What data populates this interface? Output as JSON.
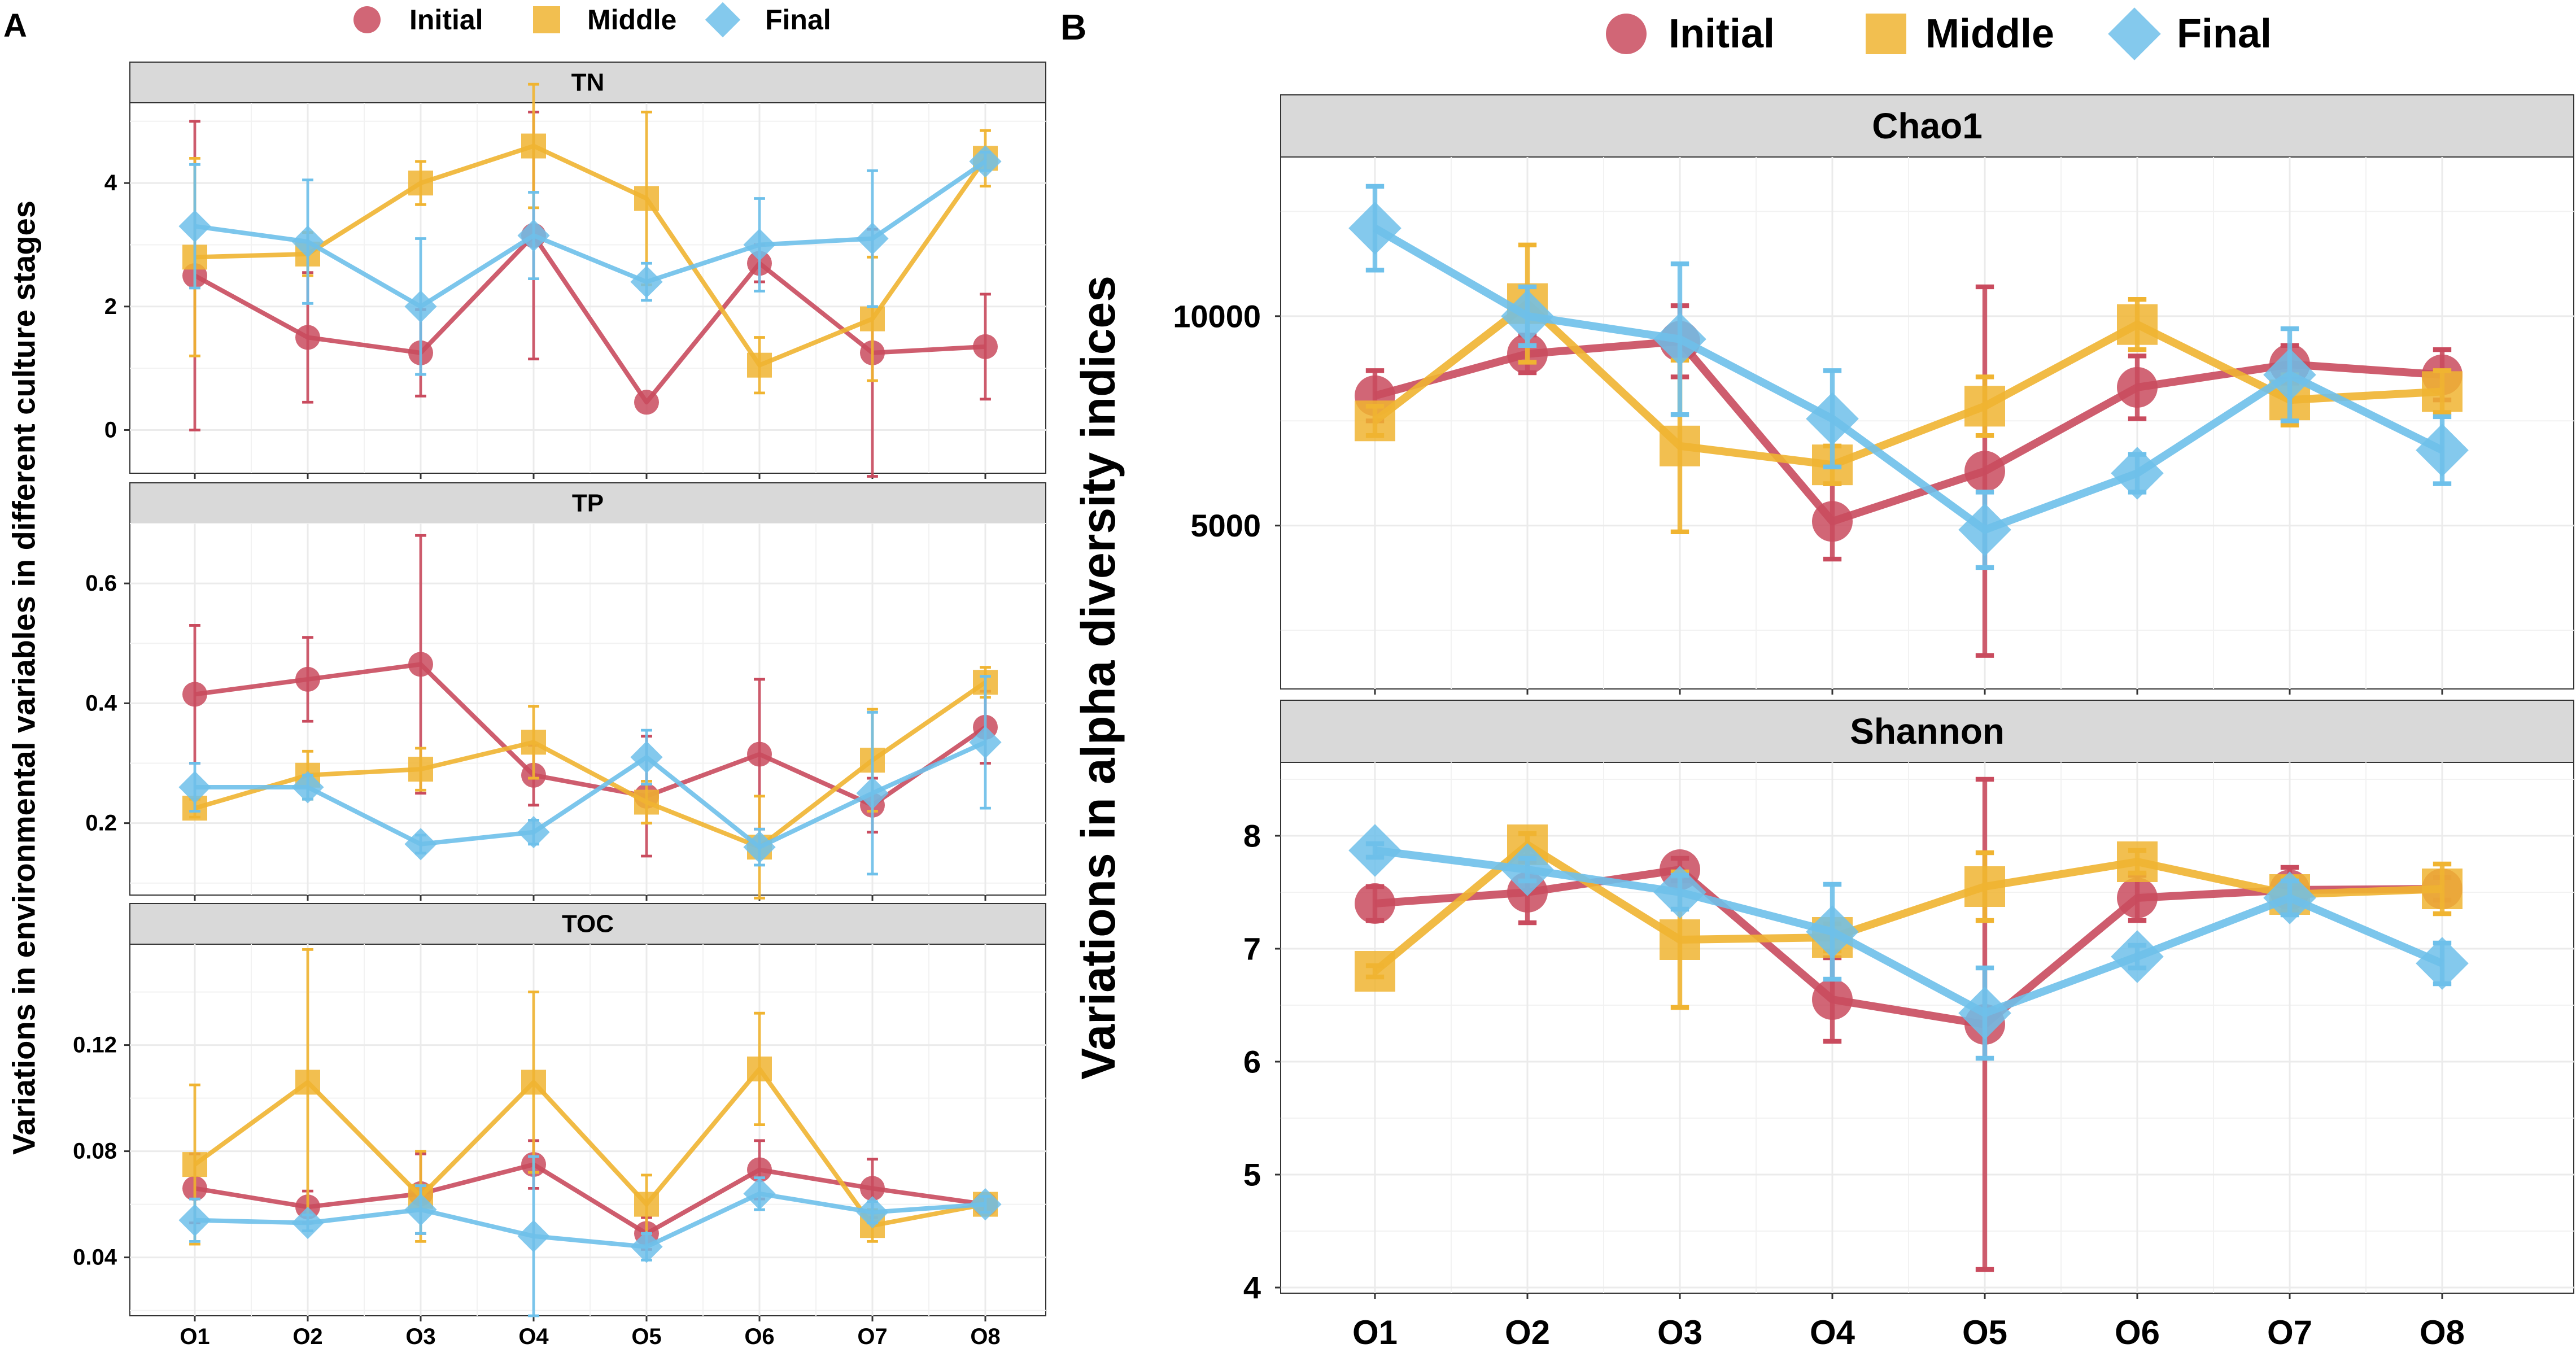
{
  "chart_data": [
    {
      "panel_label": "A",
      "type": "line",
      "ylabel": "Variations in environmental variables in different culture stages",
      "legend": [
        "Initial",
        "Middle",
        "Final"
      ],
      "categories": [
        "O1",
        "O2",
        "O3",
        "O4",
        "O5",
        "O6",
        "O7",
        "O8"
      ],
      "facets": [
        {
          "title": "TN",
          "ylim": [
            -0.7,
            5.3
          ],
          "yticks": [
            0,
            2,
            4
          ],
          "ytick_labels": [
            "0",
            "2",
            "4"
          ],
          "series": [
            {
              "name": "Initial",
              "values": [
                2.5,
                1.5,
                1.25,
                3.15,
                0.45,
                2.7,
                1.25,
                1.35
              ],
              "err": [
                2.5,
                1.05,
                0.7,
                2.0,
                0,
                0.3,
                2.0,
                0.85
              ]
            },
            {
              "name": "Middle",
              "values": [
                2.8,
                2.85,
                4.0,
                4.6,
                3.75,
                1.05,
                1.8,
                4.4
              ],
              "err": [
                1.6,
                0.35,
                0.35,
                1.0,
                1.4,
                0.45,
                1.0,
                0.45
              ]
            },
            {
              "name": "Final",
              "values": [
                3.3,
                3.05,
                2.0,
                3.15,
                2.4,
                3.0,
                3.1,
                4.35
              ],
              "err": [
                1.0,
                1.0,
                1.1,
                0.7,
                0.3,
                0.75,
                1.1,
                0.15
              ]
            }
          ]
        },
        {
          "title": "TP",
          "ylim": [
            0.08,
            0.7
          ],
          "yticks": [
            0.2,
            0.4,
            0.6
          ],
          "ytick_labels": [
            "0.2",
            "0.4",
            "0.6"
          ],
          "series": [
            {
              "name": "Initial",
              "values": [
                0.415,
                0.44,
                0.465,
                0.28,
                0.245,
                0.315,
                0.23,
                0.36
              ],
              "err": [
                0.115,
                0.07,
                0.215,
                0.05,
                0.1,
                0.125,
                0.045,
                0.06
              ]
            },
            {
              "name": "Middle",
              "values": [
                0.225,
                0.28,
                0.29,
                0.335,
                0.235,
                0.16,
                0.305,
                0.435
              ],
              "err": [
                0.015,
                0.04,
                0.035,
                0.06,
                0.035,
                0.085,
                0.085,
                0.025
              ]
            },
            {
              "name": "Final",
              "values": [
                0.26,
                0.26,
                0.165,
                0.185,
                0.31,
                0.16,
                0.25,
                0.335
              ],
              "err": [
                0.04,
                0.02,
                0.015,
                0.02,
                0.045,
                0.03,
                0.135,
                0.11
              ]
            }
          ]
        },
        {
          "title": "TOC",
          "ylim": [
            0.018,
            0.158
          ],
          "yticks": [
            0.04,
            0.08,
            0.12
          ],
          "ytick_labels": [
            "0.04",
            "0.08",
            "0.12"
          ],
          "series": [
            {
              "name": "Initial",
              "values": [
                0.066,
                0.059,
                0.064,
                0.075,
                0.049,
                0.073,
                0.066,
                0.06
              ],
              "err": [
                0.013,
                0.006,
                0.015,
                0.009,
                0.006,
                0.011,
                0.011,
                0.004
              ]
            },
            {
              "name": "Middle",
              "values": [
                0.075,
                0.106,
                0.063,
                0.106,
                0.06,
                0.111,
                0.052,
                0.06
              ],
              "err": [
                0.03,
                0.05,
                0.017,
                0.034,
                0.011,
                0.021,
                0.006,
                0.004
              ]
            },
            {
              "name": "Final",
              "values": [
                0.054,
                0.053,
                0.058,
                0.048,
                0.044,
                0.064,
                0.057,
                0.06
              ],
              "err": [
                0.008,
                0.003,
                0.009,
                0.03,
                0.005,
                0.006,
                0.004,
                0.003
              ]
            }
          ]
        }
      ]
    },
    {
      "panel_label": "B",
      "type": "line",
      "ylabel": "Variations in alpha diversity indices",
      "legend": [
        "Initial",
        "Middle",
        "Final"
      ],
      "categories": [
        "O1",
        "O2",
        "O3",
        "O4",
        "O5",
        "O6",
        "O7",
        "O8"
      ],
      "facets": [
        {
          "title": "Chao1",
          "ylim": [
            1100,
            13800
          ],
          "yticks": [
            5000,
            10000
          ],
          "ytick_labels": [
            "5000",
            "10000"
          ],
          "series": [
            {
              "name": "Initial",
              "values": [
                8100,
                9100,
                9400,
                5100,
                6300,
                8300,
                8850,
                8600
              ],
              "err": [
                600,
                450,
                850,
                900,
                4400,
                750,
                450,
                600
              ]
            },
            {
              "name": "Middle",
              "values": [
                7500,
                10300,
                6900,
                6450,
                7850,
                9800,
                8000,
                8200
              ],
              "err": [
                350,
                1400,
                2050,
                450,
                700,
                600,
                600,
                500
              ]
            },
            {
              "name": "Final",
              "values": [
                12100,
                10000,
                9450,
                7550,
                4900,
                6250,
                8600,
                6800
              ],
              "err": [
                1000,
                700,
                1800,
                1150,
                900,
                450,
                1100,
                800
              ]
            }
          ]
        },
        {
          "title": "Shannon",
          "ylim": [
            3.95,
            8.65
          ],
          "yticks": [
            4,
            5,
            6,
            7,
            8
          ],
          "ytick_labels": [
            "4",
            "5",
            "6",
            "7",
            "8"
          ],
          "series": [
            {
              "name": "Initial",
              "values": [
                7.4,
                7.5,
                7.7,
                6.55,
                6.33,
                7.45,
                7.52,
                7.53
              ],
              "err": [
                0.15,
                0.27,
                0.1,
                0.37,
                2.17,
                0.2,
                0.2,
                0.1
              ]
            },
            {
              "name": "Middle",
              "values": [
                6.8,
                7.92,
                7.08,
                7.1,
                7.55,
                7.77,
                7.48,
                7.53
              ],
              "err": [
                0.05,
                0.1,
                0.6,
                0.12,
                0.3,
                0.1,
                0.15,
                0.22
              ]
            },
            {
              "name": "Final",
              "values": [
                7.87,
                7.7,
                7.5,
                7.15,
                6.43,
                6.93,
                7.45,
                6.87
              ],
              "err": [
                0.06,
                0.1,
                0.15,
                0.42,
                0.4,
                0.1,
                0.15,
                0.18
              ]
            }
          ]
        }
      ]
    }
  ],
  "colors": {
    "Initial": "#C94B5E",
    "Middle": "#F0B431",
    "Final": "#6EC0EA",
    "strip": "#D9D9D9",
    "grid": "#EBEBEB"
  }
}
